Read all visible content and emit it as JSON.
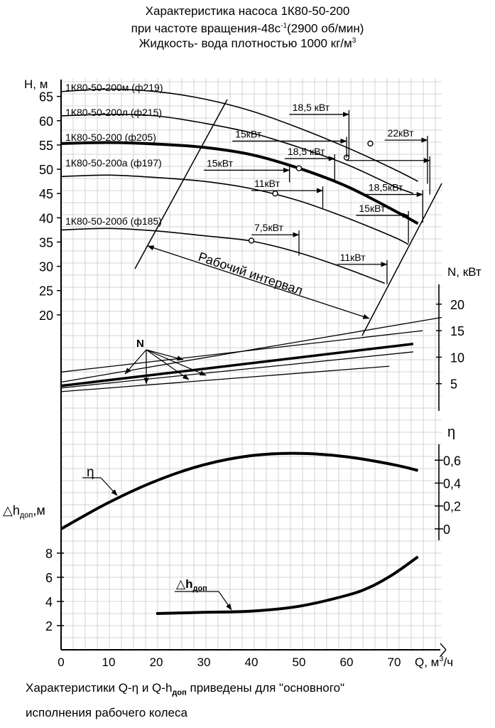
{
  "header": {
    "line1": "Характеристика насоса 1К80-50-200",
    "line2_pre": "при частоте вращения-48с",
    "line2_sup": "-1",
    "line2_post": "(2900 об/мин)",
    "line3_pre": "Жидкость- вода плотностью 1000 кг/м",
    "line3_sup": "3"
  },
  "footer": {
    "line1_a": "Характеристики Q-η и Q-",
    "line1_delta": "△",
    "line1_h": "h",
    "line1_sub": "доп",
    "line1_b": " приведены для \"основного\"",
    "line2": "исполнения рабочего колеса"
  },
  "chart_data": {
    "type": "line",
    "x_axis": {
      "label_pre": "Q, м",
      "label_sup": "3",
      "label_post": "/ч",
      "range": [
        0,
        80
      ],
      "ticks": [
        "0",
        "10",
        "20",
        "30",
        "40",
        "50",
        "60",
        "70"
      ]
    },
    "head_axis": {
      "label": "H, м",
      "range": [
        15,
        67
      ],
      "ticks": [
        "20",
        "25",
        "30",
        "35",
        "40",
        "45",
        "50",
        "55",
        "60",
        "65"
      ]
    },
    "power_axis": {
      "label": "N, кВт",
      "range": [
        0,
        24
      ],
      "ticks": [
        "5",
        "10",
        "15",
        "20"
      ]
    },
    "efficiency_axis": {
      "label": "η",
      "range": [
        -0.1,
        0.72
      ],
      "ticks": [
        "0",
        "0,2",
        "0,4",
        "0,6"
      ]
    },
    "npsh_axis": {
      "label_pre": "△h",
      "label_sub": "доп",
      "label_post": ",м",
      "range": [
        0,
        10
      ],
      "ticks": [
        "2",
        "4",
        "6",
        "8"
      ]
    },
    "head_series": [
      {
        "name": "1К80-50-200м (ф219)",
        "x": [
          0,
          10,
          20,
          30,
          40,
          50,
          60,
          70,
          75
        ],
        "y": [
          66.0,
          66.5,
          66.0,
          64.5,
          62.0,
          58.5,
          54.5,
          50.0,
          47.5
        ],
        "dots": [
          [
            65,
            55.3
          ]
        ],
        "markers": [
          {
            "label": "18,5 кВт",
            "x1": 48,
            "x2": 60.5,
            "y": 61.3,
            "drop_to_y": 52.5
          },
          {
            "label": "22кВт",
            "x1": 68,
            "x2": 77,
            "y": 56.0,
            "drop_to_y": 47.0
          }
        ]
      },
      {
        "name": "1К80-50-200л (ф215)",
        "x": [
          0,
          10,
          20,
          30,
          40,
          50,
          60,
          70,
          74
        ],
        "y": [
          61.0,
          61.3,
          61.0,
          59.5,
          57.5,
          54.5,
          51.0,
          46.5,
          45.0
        ],
        "dots": [
          [
            60,
            52.4
          ]
        ],
        "markers": [
          {
            "label": "15кВт",
            "x1": 36,
            "x2": 60,
            "y": 55.8,
            "drop_to_y": 52.4
          },
          {
            "label": "",
            "x1": 60,
            "x2": 77.5,
            "y": 51.8,
            "drop_to_y": 44.8
          }
        ]
      },
      {
        "name": "1К80-50-200 (ф205)",
        "bold": true,
        "x": [
          0,
          10,
          20,
          30,
          40,
          50,
          60,
          70,
          75
        ],
        "y": [
          55.3,
          55.5,
          55.2,
          54.5,
          53.0,
          50.2,
          46.5,
          41.5,
          38.8
        ],
        "dots": [
          [
            50,
            50.2
          ]
        ],
        "markers": [
          {
            "label": "18,5 кВт",
            "x1": 47,
            "x2": 57.5,
            "y": 52.2,
            "drop_to_y": 47.5
          },
          {
            "label": "18,5кВт",
            "x1": 64,
            "x2": 76,
            "y": 44.8,
            "drop_to_y": 39.0
          }
        ]
      },
      {
        "name": "1К80-50-200а (ф197)",
        "x": [
          0,
          10,
          20,
          30,
          40,
          50,
          60,
          70,
          73
        ],
        "y": [
          48.5,
          48.8,
          48.3,
          47.5,
          46.0,
          43.5,
          40.0,
          36.0,
          34.5
        ],
        "dots": [
          [
            45,
            45.0
          ]
        ],
        "markers": [
          {
            "label": "15кВт",
            "x1": 30,
            "x2": 48,
            "y": 49.8,
            "drop_to_y": 47.3
          },
          {
            "label": "11кВт",
            "x1": 40,
            "x2": 55,
            "y": 45.6,
            "drop_to_y": 42.0
          },
          {
            "label": "15кВт",
            "x1": 62,
            "x2": 73,
            "y": 40.5,
            "drop_to_y": 34.8
          }
        ]
      },
      {
        "name": "1К80-50-200б (ф185)",
        "x": [
          0,
          10,
          20,
          30,
          40,
          50,
          60,
          68
        ],
        "y": [
          37.5,
          37.8,
          37.3,
          36.3,
          35.2,
          32.8,
          29.5,
          26.5
        ],
        "dots": [
          [
            40,
            35.3
          ]
        ],
        "markers": [
          {
            "label": "7,5кВт",
            "x1": 40,
            "x2": 50,
            "y": 36.5,
            "drop_to_y": 32.2
          },
          {
            "label": "11кВт",
            "x1": 58,
            "x2": 68.5,
            "y": 30.4,
            "drop_to_y": 26.3
          }
        ]
      }
    ],
    "operating_range_label": "Рабочий интервал",
    "power_series_label": "N",
    "power_series": [
      {
        "x": [
          0,
          80
        ],
        "y": [
          5.3,
          17.5
        ]
      },
      {
        "x": [
          0,
          76
        ],
        "y": [
          7.2,
          15.0
        ]
      },
      {
        "x": [
          0,
          74
        ],
        "y": [
          4.6,
          12.5
        ],
        "bold": true
      },
      {
        "x": [
          0,
          74
        ],
        "y": [
          4.2,
          11.0
        ]
      },
      {
        "x": [
          0,
          69
        ],
        "y": [
          3.5,
          8.3
        ]
      }
    ],
    "efficiency_series": {
      "label": "η",
      "x": [
        0,
        10,
        20,
        30,
        40,
        50,
        60,
        70,
        75
      ],
      "y": [
        0.0,
        0.23,
        0.42,
        0.56,
        0.64,
        0.66,
        0.63,
        0.56,
        0.51
      ]
    },
    "npsh_series": {
      "label_pre": "△h",
      "label_sub": "доп",
      "x": [
        20,
        30,
        40,
        50,
        60,
        65,
        70,
        75
      ],
      "y": [
        3.0,
        3.1,
        3.2,
        3.6,
        4.5,
        5.2,
        6.3,
        7.7
      ]
    }
  }
}
